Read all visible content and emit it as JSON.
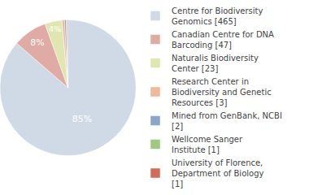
{
  "chart_data": {
    "type": "pie",
    "categories": [
      "Centre for Biodiversity Genomics [465]",
      "Canadian Centre for DNA Barcoding [47]",
      "Naturalis Biodiversity Center [23]",
      "Research Center in Biodiversity and Genetic Resources [3]",
      "Mined from GenBank, NCBI [2]",
      "Wellcome Sanger Institute [1]",
      "University of Florence, Department of Biology [1]"
    ],
    "values": [
      85,
      8,
      4,
      0.6,
      0.4,
      0.2,
      0.2
    ],
    "value_labels": [
      "85%",
      "8%",
      "4%",
      null,
      null,
      null,
      null
    ],
    "colors": [
      "#cfdae6",
      "#e0aaa5",
      "#e1e6b0",
      "#f0b896",
      "#8ba4c8",
      "#a0c880",
      "#d46a5a"
    ],
    "data_labels": true,
    "legend": "right"
  }
}
